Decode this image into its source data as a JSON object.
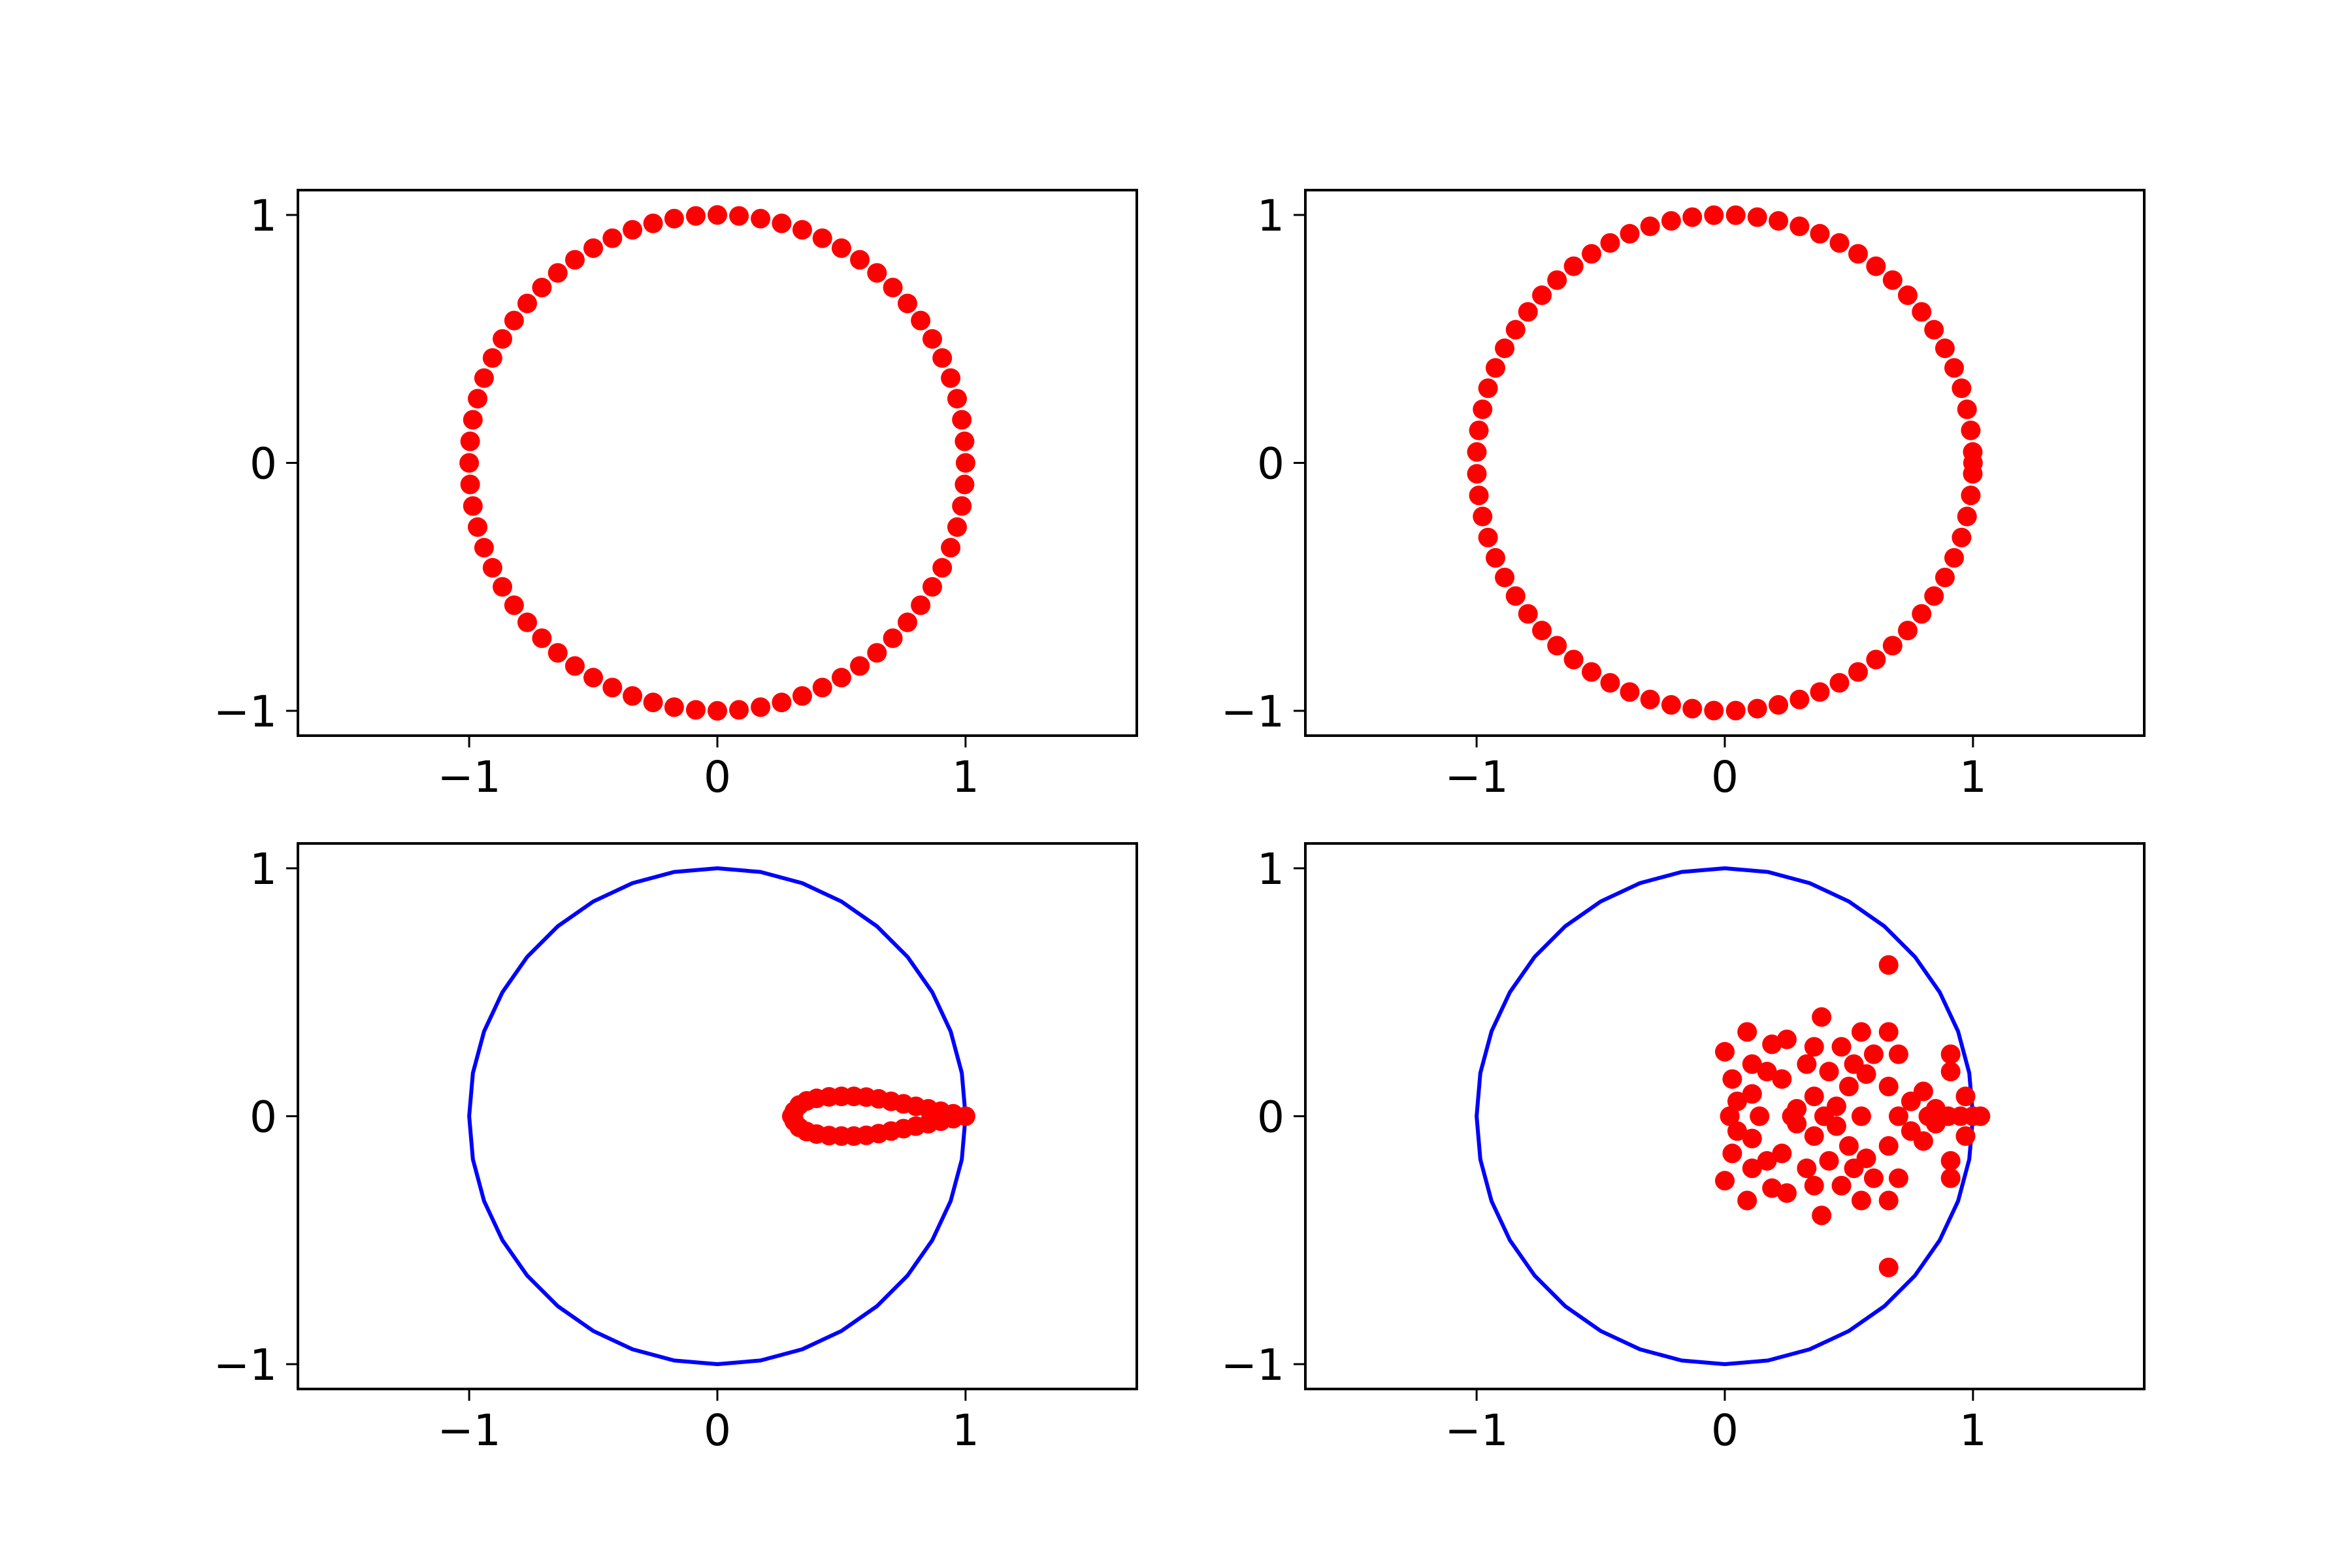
{
  "chart_data": [
    {
      "type": "scatter",
      "xlim": [
        -1.69,
        1.69
      ],
      "ylim": [
        -1.1,
        1.1
      ],
      "xticks": [
        {
          "value": -1,
          "label": "−1"
        },
        0,
        1
      ],
      "yticks": [
        {
          "value": -1,
          "label": "−1"
        },
        0,
        1
      ],
      "series": [
        {
          "type": "scatter",
          "color": "#ff0000",
          "x": [
            1,
            0.996,
            0.985,
            0.966,
            0.94,
            0.906,
            0.866,
            0.819,
            0.766,
            0.707,
            0.643,
            0.574,
            0.5,
            0.423,
            0.342,
            0.259,
            0.174,
            0.087,
            0,
            -0.087,
            -0.174,
            -0.259,
            -0.342,
            -0.423,
            -0.5,
            -0.574,
            -0.643,
            -0.707,
            -0.766,
            -0.819,
            -0.866,
            -0.906,
            -0.94,
            -0.966,
            -0.985,
            -0.996,
            -1,
            -0.996,
            -0.985,
            -0.966,
            -0.94,
            -0.906,
            -0.866,
            -0.819,
            -0.766,
            -0.707,
            -0.643,
            -0.574,
            -0.5,
            -0.423,
            -0.342,
            -0.259,
            -0.174,
            -0.087,
            0,
            0.087,
            0.174,
            0.259,
            0.342,
            0.423,
            0.5,
            0.574,
            0.643,
            0.707,
            0.766,
            0.819,
            0.866,
            0.906,
            0.94,
            0.966,
            0.985,
            0.996
          ],
          "y": [
            0,
            0.087,
            0.174,
            0.259,
            0.342,
            0.423,
            0.5,
            0.574,
            0.643,
            0.707,
            0.766,
            0.819,
            0.866,
            0.906,
            0.94,
            0.966,
            0.985,
            0.996,
            1,
            0.996,
            0.985,
            0.966,
            0.94,
            0.906,
            0.866,
            0.819,
            0.766,
            0.707,
            0.643,
            0.574,
            0.5,
            0.423,
            0.342,
            0.259,
            0.174,
            0.087,
            0,
            -0.087,
            -0.174,
            -0.259,
            -0.342,
            -0.423,
            -0.5,
            -0.574,
            -0.643,
            -0.707,
            -0.766,
            -0.819,
            -0.866,
            -0.906,
            -0.94,
            -0.966,
            -0.985,
            -0.996,
            -1,
            -0.996,
            -0.985,
            -0.966,
            -0.94,
            -0.906,
            -0.866,
            -0.819,
            -0.766,
            -0.707,
            -0.643,
            -0.574,
            -0.5,
            -0.423,
            -0.342,
            -0.259,
            -0.174,
            -0.087
          ]
        }
      ]
    },
    {
      "type": "scatter",
      "xlim": [
        -1.69,
        1.69
      ],
      "ylim": [
        -1.1,
        1.1
      ],
      "xticks": [
        {
          "value": -1,
          "label": "−1"
        },
        0,
        1
      ],
      "yticks": [
        {
          "value": -1,
          "label": "−1"
        },
        0,
        1
      ],
      "series": [
        {
          "type": "scatter",
          "color": "#ff0000",
          "x": [
            1,
            0.999,
            0.991,
            0.976,
            0.954,
            0.924,
            0.887,
            0.843,
            0.793,
            0.737,
            0.676,
            0.609,
            0.537,
            0.462,
            0.383,
            0.301,
            0.216,
            0.131,
            0.044,
            -0.044,
            -0.131,
            -0.216,
            -0.301,
            -0.383,
            -0.462,
            -0.537,
            -0.609,
            -0.676,
            -0.737,
            -0.793,
            -0.843,
            -0.887,
            -0.924,
            -0.954,
            -0.976,
            -0.991,
            -0.999,
            -0.999,
            -0.991,
            -0.976,
            -0.954,
            -0.924,
            -0.887,
            -0.843,
            -0.793,
            -0.737,
            -0.676,
            -0.609,
            -0.537,
            -0.462,
            -0.383,
            -0.301,
            -0.216,
            -0.131,
            -0.044,
            0.044,
            0.131,
            0.216,
            0.301,
            0.383,
            0.462,
            0.537,
            0.609,
            0.676,
            0.737,
            0.793,
            0.843,
            0.887,
            0.924,
            0.954,
            0.976,
            0.991,
            0.999
          ],
          "y": [
            0,
            0.044,
            0.131,
            0.216,
            0.301,
            0.383,
            0.462,
            0.537,
            0.609,
            0.676,
            0.737,
            0.793,
            0.843,
            0.887,
            0.924,
            0.954,
            0.976,
            0.991,
            0.999,
            0.999,
            0.991,
            0.976,
            0.954,
            0.924,
            0.887,
            0.843,
            0.793,
            0.737,
            0.676,
            0.609,
            0.537,
            0.462,
            0.383,
            0.301,
            0.216,
            0.131,
            0.044,
            -0.044,
            -0.131,
            -0.216,
            -0.301,
            -0.383,
            -0.462,
            -0.537,
            -0.609,
            -0.676,
            -0.737,
            -0.793,
            -0.843,
            -0.887,
            -0.924,
            -0.954,
            -0.976,
            -0.991,
            -0.999,
            -0.999,
            -0.991,
            -0.976,
            -0.954,
            -0.924,
            -0.887,
            -0.843,
            -0.793,
            -0.737,
            -0.676,
            -0.609,
            -0.537,
            -0.462,
            -0.383,
            -0.301,
            -0.216,
            -0.131,
            -0.044
          ]
        }
      ]
    },
    {
      "type": "scatter",
      "xlim": [
        -1.69,
        1.69
      ],
      "ylim": [
        -1.1,
        1.1
      ],
      "xticks": [
        {
          "value": -1,
          "label": "−1"
        },
        0,
        1
      ],
      "yticks": [
        {
          "value": -1,
          "label": "−1"
        },
        0,
        1
      ],
      "series": [
        {
          "type": "line",
          "color": "#0000ff",
          "x": [
            1,
            0.985,
            0.94,
            0.866,
            0.766,
            0.643,
            0.5,
            0.342,
            0.174,
            0,
            -0.174,
            -0.342,
            -0.5,
            -0.643,
            -0.766,
            -0.866,
            -0.94,
            -0.985,
            -1,
            -0.985,
            -0.94,
            -0.866,
            -0.766,
            -0.643,
            -0.5,
            -0.342,
            -0.174,
            0,
            0.174,
            0.342,
            0.5,
            0.643,
            0.766,
            0.866,
            0.94,
            0.985,
            1
          ],
          "y": [
            0,
            0.174,
            0.342,
            0.5,
            0.643,
            0.766,
            0.866,
            0.94,
            0.985,
            1,
            0.985,
            0.94,
            0.866,
            0.766,
            0.643,
            0.5,
            0.342,
            0.174,
            0,
            -0.174,
            -0.342,
            -0.5,
            -0.643,
            -0.766,
            -0.866,
            -0.94,
            -0.985,
            -1,
            -0.985,
            -0.94,
            -0.866,
            -0.766,
            -0.643,
            -0.5,
            -0.342,
            -0.174,
            0
          ]
        },
        {
          "type": "scatter",
          "color": "#ff0000",
          "x": [
            1,
            0.95,
            0.9,
            0.85,
            0.8,
            0.75,
            0.7,
            0.65,
            0.6,
            0.55,
            0.5,
            0.45,
            0.4,
            0.36,
            0.33,
            0.31,
            0.3,
            0.31,
            0.33,
            0.36,
            0.4,
            0.45,
            0.5,
            0.55,
            0.6,
            0.65,
            0.7,
            0.75,
            0.8,
            0.85,
            0.9,
            0.95
          ],
          "y": [
            0,
            0.01,
            0.02,
            0.03,
            0.04,
            0.05,
            0.06,
            0.07,
            0.077,
            0.08,
            0.08,
            0.078,
            0.072,
            0.062,
            0.045,
            0.02,
            0,
            -0.02,
            -0.045,
            -0.062,
            -0.072,
            -0.078,
            -0.08,
            -0.08,
            -0.077,
            -0.07,
            -0.06,
            -0.05,
            -0.04,
            -0.03,
            -0.02,
            -0.01
          ]
        }
      ]
    },
    {
      "type": "scatter",
      "xlim": [
        -1.69,
        1.69
      ],
      "ylim": [
        -1.1,
        1.1
      ],
      "xticks": [
        {
          "value": -1,
          "label": "−1"
        },
        0,
        1
      ],
      "yticks": [
        {
          "value": -1,
          "label": "−1"
        },
        0,
        1
      ],
      "series": [
        {
          "type": "line",
          "color": "#0000ff",
          "x": [
            1,
            0.985,
            0.94,
            0.866,
            0.766,
            0.643,
            0.5,
            0.342,
            0.174,
            0,
            -0.174,
            -0.342,
            -0.5,
            -0.643,
            -0.766,
            -0.866,
            -0.94,
            -0.985,
            -1,
            -0.985,
            -0.94,
            -0.866,
            -0.766,
            -0.643,
            -0.5,
            -0.342,
            -0.174,
            0,
            0.174,
            0.342,
            0.5,
            0.643,
            0.766,
            0.866,
            0.94,
            0.985,
            1
          ],
          "y": [
            0,
            0.174,
            0.342,
            0.5,
            0.643,
            0.766,
            0.866,
            0.94,
            0.985,
            1,
            0.985,
            0.94,
            0.866,
            0.766,
            0.643,
            0.5,
            0.342,
            0.174,
            0,
            -0.174,
            -0.342,
            -0.5,
            -0.643,
            -0.766,
            -0.866,
            -0.94,
            -0.985,
            -1,
            -0.985,
            -0.94,
            -0.866,
            -0.766,
            -0.643,
            -0.5,
            -0.342,
            -0.174,
            0
          ]
        },
        {
          "type": "scatter",
          "color": "#ff0000",
          "x": [
            0.66,
            0,
            0.09,
            0.03,
            0.19,
            0.25,
            0.39,
            0.36,
            0.55,
            0.66,
            0.91,
            0.47,
            0.6,
            0.7,
            0.8,
            0.97,
            0.91,
            0.11,
            0.23,
            0.36,
            0.5,
            0.66,
            0.17,
            0.42,
            0.57,
            0.75,
            0.05,
            0.29,
            0.45,
            0.85,
            0.11,
            0.33,
            0.52,
            0.66,
            0,
            0.09,
            0.03,
            0.19,
            0.25,
            0.39,
            0.36,
            0.55,
            0.66,
            0.91,
            0.47,
            0.6,
            0.7,
            0.8,
            0.97,
            0.91,
            0.11,
            0.23,
            0.36,
            0.5,
            0.66,
            0.17,
            0.42,
            0.57,
            0.75,
            0.05,
            0.29,
            0.45,
            0.85,
            0.11,
            0.33,
            0.52,
            0.02,
            0.14,
            0.27,
            0.4,
            0.55,
            0.7,
            0.82,
            0.9,
            0.95,
            1,
            1.03
          ],
          "y": [
            0.61,
            0.26,
            0.34,
            0.15,
            0.29,
            0.31,
            0.4,
            0.28,
            0.34,
            0.34,
            0.25,
            0.28,
            0.25,
            0.25,
            0.1,
            0.08,
            0.18,
            0.09,
            0.15,
            0.08,
            0.12,
            0.12,
            0.18,
            0.18,
            0.17,
            0.06,
            0.06,
            0.03,
            0.04,
            0.03,
            0.21,
            0.21,
            0.21,
            -0.61,
            -0.26,
            -0.34,
            -0.15,
            -0.29,
            -0.31,
            -0.4,
            -0.28,
            -0.34,
            -0.34,
            -0.25,
            -0.28,
            -0.25,
            -0.25,
            -0.1,
            -0.08,
            -0.18,
            -0.09,
            -0.15,
            -0.08,
            -0.12,
            -0.12,
            -0.18,
            -0.18,
            -0.17,
            -0.06,
            -0.06,
            -0.03,
            -0.04,
            -0.03,
            -0.21,
            -0.21,
            -0.21,
            0,
            0,
            0,
            0,
            0,
            0,
            0,
            0,
            0,
            0,
            0
          ]
        }
      ]
    }
  ]
}
